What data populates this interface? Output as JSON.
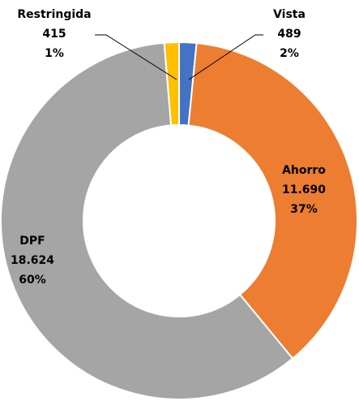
{
  "chart_data": {
    "type": "donut",
    "categories": [
      "Vista",
      "Ahorro",
      "DPF",
      "Restringida"
    ],
    "values": [
      489,
      11690,
      18624,
      415
    ],
    "value_labels": [
      "489",
      "11.690",
      "18.624",
      "415"
    ],
    "percent_labels": [
      "2%",
      "37%",
      "60%",
      "1%"
    ],
    "colors": [
      "#4472c4",
      "#ed7d31",
      "#a5a5a5",
      "#ffc000"
    ]
  }
}
